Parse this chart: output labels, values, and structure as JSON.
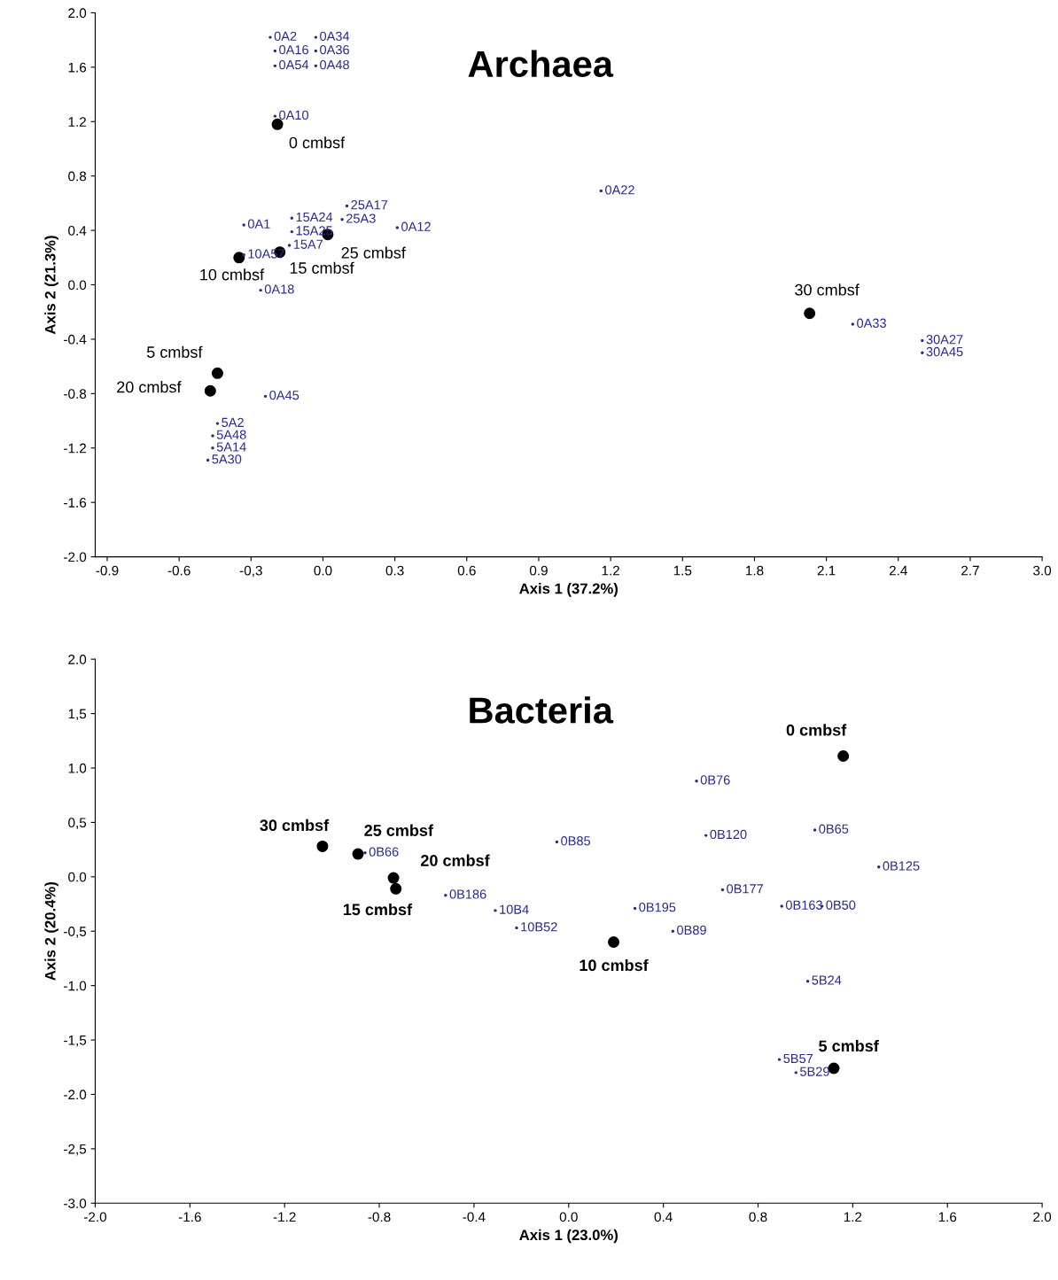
{
  "chart_data": [
    {
      "type": "scatter",
      "title": "Archaea",
      "xlabel": "Axis 1 (37.2%)",
      "ylabel": "Axis 2 (21.3%)",
      "xlim": [
        -0.95,
        3.0
      ],
      "ylim": [
        -2.0,
        2.0
      ],
      "xticks": [
        {
          "value": -0.9,
          "label": "-0.9"
        },
        {
          "value": -0.6,
          "label": "-0.6"
        },
        {
          "value": -0.3,
          "label": "-0,3"
        },
        {
          "value": 0.0,
          "label": "0.0"
        },
        {
          "value": 0.3,
          "label": "0.3"
        },
        {
          "value": 0.6,
          "label": "0.6"
        },
        {
          "value": 0.9,
          "label": "0.9"
        },
        {
          "value": 1.2,
          "label": "1.2"
        },
        {
          "value": 1.5,
          "label": "1.5"
        },
        {
          "value": 1.8,
          "label": "1.8"
        },
        {
          "value": 2.1,
          "label": "2.1"
        },
        {
          "value": 2.4,
          "label": "2.4"
        },
        {
          "value": 2.7,
          "label": "2.7"
        },
        {
          "value": 3.0,
          "label": "3.0"
        }
      ],
      "yticks": [
        {
          "value": -2.0,
          "label": "-2.0"
        },
        {
          "value": -1.6,
          "label": "-1.6"
        },
        {
          "value": -1.2,
          "label": "-1.2"
        },
        {
          "value": -0.8,
          "label": "-0.8"
        },
        {
          "value": -0.4,
          "label": "-0.4"
        },
        {
          "value": 0.0,
          "label": "0.0"
        },
        {
          "value": 0.4,
          "label": "0.4"
        },
        {
          "value": 0.8,
          "label": "0.8"
        },
        {
          "value": 1.2,
          "label": "1.2"
        },
        {
          "value": 1.6,
          "label": "1.6"
        },
        {
          "value": 2.0,
          "label": "2.0"
        }
      ],
      "grid": false,
      "legend": false,
      "marker": "circle",
      "series": [
        {
          "name": "0 cmbsf",
          "color": "#000000",
          "x": [
            -0.19
          ],
          "values": [
            1.18
          ]
        },
        {
          "name": "25 cmbsf",
          "color": "#000000",
          "x": [
            0.02
          ],
          "values": [
            0.37
          ]
        },
        {
          "name": "15 cmbsf",
          "color": "#000000",
          "x": [
            -0.18
          ],
          "values": [
            0.24
          ]
        },
        {
          "name": "10 cmbsf",
          "color": "#000000",
          "x": [
            -0.35
          ],
          "values": [
            0.2
          ]
        },
        {
          "name": "5 cmbsf",
          "color": "#000000",
          "x": [
            -0.44
          ],
          "values": [
            -0.65
          ]
        },
        {
          "name": "20 cmbsf",
          "color": "#000000",
          "x": [
            -0.47
          ],
          "values": [
            -0.78
          ]
        },
        {
          "name": "30 cmbsf",
          "color": "#000000",
          "x": [
            2.03
          ],
          "values": [
            -0.21
          ]
        },
        {
          "name": "0A2",
          "marker": "none",
          "color": "#2b2b8c",
          "x": [
            -0.22
          ],
          "values": [
            1.82
          ]
        },
        {
          "name": "0A34",
          "marker": "none",
          "color": "#2b2b8c",
          "x": [
            -0.03
          ],
          "values": [
            1.82
          ]
        },
        {
          "name": "0A16",
          "marker": "none",
          "color": "#2b2b8c",
          "x": [
            -0.2
          ],
          "values": [
            1.72
          ]
        },
        {
          "name": "0A36",
          "marker": "none",
          "color": "#2b2b8c",
          "x": [
            -0.03
          ],
          "values": [
            1.72
          ]
        },
        {
          "name": "0A54",
          "marker": "none",
          "color": "#2b2b8c",
          "x": [
            -0.2
          ],
          "values": [
            1.61
          ]
        },
        {
          "name": "0A48",
          "marker": "none",
          "color": "#2b2b8c",
          "x": [
            -0.03
          ],
          "values": [
            1.61
          ]
        },
        {
          "name": "0A10",
          "marker": "none",
          "color": "#2b2b8c",
          "x": [
            -0.2
          ],
          "values": [
            1.24
          ]
        },
        {
          "name": "0A22",
          "marker": "none",
          "color": "#2b2b8c",
          "x": [
            1.16
          ],
          "values": [
            0.69
          ]
        },
        {
          "name": "0A1",
          "marker": "none",
          "color": "#2b2b8c",
          "x": [
            -0.33
          ],
          "values": [
            0.44
          ]
        },
        {
          "name": "15A24",
          "marker": "none",
          "color": "#2b2b8c",
          "x": [
            -0.13
          ],
          "values": [
            0.49
          ]
        },
        {
          "name": "15A25",
          "marker": "none",
          "color": "#2b2b8c",
          "x": [
            -0.13
          ],
          "values": [
            0.39
          ]
        },
        {
          "name": "15A7",
          "marker": "none",
          "color": "#2b2b8c",
          "x": [
            -0.14
          ],
          "values": [
            0.29
          ]
        },
        {
          "name": "25A17",
          "marker": "none",
          "color": "#2b2b8c",
          "x": [
            0.1
          ],
          "values": [
            0.58
          ]
        },
        {
          "name": "25A3",
          "marker": "none",
          "color": "#2b2b8c",
          "x": [
            0.08
          ],
          "values": [
            0.48
          ]
        },
        {
          "name": "0A12",
          "marker": "none",
          "color": "#2b2b8c",
          "x": [
            0.31
          ],
          "values": [
            0.42
          ]
        },
        {
          "name": "10A57",
          "marker": "none",
          "color": "#2b2b8c",
          "x": [
            -0.33
          ],
          "values": [
            0.22
          ]
        },
        {
          "name": "0A18",
          "marker": "none",
          "color": "#2b2b8c",
          "x": [
            -0.26
          ],
          "values": [
            -0.04
          ]
        },
        {
          "name": "0A33",
          "marker": "none",
          "color": "#2b2b8c",
          "x": [
            2.21
          ],
          "values": [
            -0.29
          ]
        },
        {
          "name": "30A27",
          "marker": "none",
          "color": "#2b2b8c",
          "x": [
            2.5
          ],
          "values": [
            -0.41
          ]
        },
        {
          "name": "30A45",
          "marker": "none",
          "color": "#2b2b8c",
          "x": [
            2.5
          ],
          "values": [
            -0.5
          ]
        },
        {
          "name": "0A45",
          "marker": "none",
          "color": "#2b2b8c",
          "x": [
            -0.24
          ],
          "values": [
            -0.82
          ]
        },
        {
          "name": "5A2",
          "marker": "none",
          "color": "#2b2b8c",
          "x": [
            -0.44
          ],
          "values": [
            -1.02
          ]
        },
        {
          "name": "5A48",
          "marker": "none",
          "color": "#2b2b8c",
          "x": [
            -0.46
          ],
          "values": [
            -1.11
          ]
        },
        {
          "name": "5A14",
          "marker": "none",
          "color": "#2b2b8c",
          "x": [
            -0.46
          ],
          "values": [
            -1.2
          ]
        },
        {
          "name": "5A30",
          "marker": "none",
          "color": "#2b2b8c",
          "x": [
            -0.48
          ],
          "values": [
            -1.29
          ]
        }
      ]
    },
    {
      "type": "scatter",
      "title": "Bacteria",
      "xlabel": "Axis 1 (23.0%)",
      "ylabel": "Axis 2 (20.4%)",
      "xlim": [
        -2.0,
        2.0
      ],
      "ylim": [
        -3.0,
        2.0
      ],
      "xticks": [
        {
          "value": -2.0,
          "label": "-2.0"
        },
        {
          "value": -1.6,
          "label": "-1.6"
        },
        {
          "value": -1.2,
          "label": "-1.2"
        },
        {
          "value": -0.8,
          "label": "-0.8"
        },
        {
          "value": -0.4,
          "label": "-0.4"
        },
        {
          "value": 0.0,
          "label": "0.0"
        },
        {
          "value": 0.4,
          "label": "0.4"
        },
        {
          "value": 0.8,
          "label": "0.8"
        },
        {
          "value": 1.2,
          "label": "1.2"
        },
        {
          "value": 1.6,
          "label": "1.6"
        },
        {
          "value": 2.0,
          "label": "2.0"
        }
      ],
      "yticks": [
        {
          "value": -3.0,
          "label": "-3.0"
        },
        {
          "value": -2.5,
          "label": "-2,5"
        },
        {
          "value": -2.0,
          "label": "-2.0"
        },
        {
          "value": -1.5,
          "label": "-1,5"
        },
        {
          "value": -1.0,
          "label": "-1.0"
        },
        {
          "value": -0.5,
          "label": "-0,5"
        },
        {
          "value": 0.0,
          "label": "0.0"
        },
        {
          "value": 0.5,
          "label": "0,5"
        },
        {
          "value": 1.0,
          "label": "1.0"
        },
        {
          "value": 1.5,
          "label": "1,5"
        },
        {
          "value": 2.0,
          "label": "2.0"
        }
      ],
      "grid": false,
      "legend": false,
      "marker": "circle",
      "series": [
        {
          "name": "0 cmbsf",
          "color": "#000000",
          "x": [
            1.16
          ],
          "values": [
            1.11
          ]
        },
        {
          "name": "30 cmbsf",
          "color": "#000000",
          "x": [
            -1.04
          ],
          "values": [
            0.28
          ]
        },
        {
          "name": "25 cmbsf",
          "color": "#000000",
          "x": [
            -0.89
          ],
          "values": [
            0.21
          ]
        },
        {
          "name": "20 cmbsf",
          "color": "#000000",
          "x": [
            -0.74
          ],
          "values": [
            -0.01
          ]
        },
        {
          "name": "10 cmbsf",
          "color": "#000000",
          "x": [
            0.19
          ],
          "values": [
            -0.6
          ]
        },
        {
          "name": "5 cmbsf",
          "color": "#000000",
          "x": [
            1.12
          ],
          "values": [
            -1.76
          ]
        },
        {
          "name": "15 cmbsf",
          "color": "#000000",
          "x": [
            -0.73
          ],
          "values": [
            -0.11
          ]
        },
        {
          "name": "0B76",
          "marker": "none",
          "color": "#2b2b8c",
          "x": [
            0.54
          ],
          "values": [
            0.88
          ]
        },
        {
          "name": "0B85",
          "marker": "none",
          "color": "#2b2b8c",
          "x": [
            -0.05
          ],
          "values": [
            0.32
          ]
        },
        {
          "name": "0B120",
          "marker": "none",
          "color": "#2b2b8c",
          "x": [
            0.58
          ],
          "values": [
            0.38
          ]
        },
        {
          "name": "0B65",
          "marker": "none",
          "color": "#2b2b8c",
          "x": [
            1.04
          ],
          "values": [
            0.43
          ]
        },
        {
          "name": "0B125",
          "marker": "none",
          "color": "#2b2b8c",
          "x": [
            1.31
          ],
          "values": [
            0.09
          ]
        },
        {
          "name": "0B177",
          "marker": "none",
          "color": "#2b2b8c",
          "x": [
            0.65
          ],
          "values": [
            -0.12
          ]
        },
        {
          "name": "0B163",
          "marker": "none",
          "color": "#2b2b8c",
          "x": [
            0.9
          ],
          "values": [
            -0.27
          ]
        },
        {
          "name": "0B50",
          "marker": "none",
          "color": "#2b2b8c",
          "x": [
            1.07
          ],
          "values": [
            -0.27
          ]
        },
        {
          "name": "0B195",
          "marker": "none",
          "color": "#2b2b8c",
          "x": [
            0.28
          ],
          "values": [
            -0.29
          ]
        },
        {
          "name": "0B89",
          "marker": "none",
          "color": "#2b2b8c",
          "x": [
            0.44
          ],
          "values": [
            -0.5
          ]
        },
        {
          "name": "0B66",
          "marker": "none",
          "color": "#2b2b8c",
          "x": [
            -0.86
          ],
          "values": [
            0.22
          ]
        },
        {
          "name": "0B186",
          "marker": "none",
          "color": "#2b2b8c",
          "x": [
            -0.52
          ],
          "values": [
            -0.17
          ]
        },
        {
          "name": "10B4",
          "marker": "none",
          "color": "#2b2b8c",
          "x": [
            -0.31
          ],
          "values": [
            -0.31
          ]
        },
        {
          "name": "10B52",
          "marker": "none",
          "color": "#2b2b8c",
          "x": [
            -0.22
          ],
          "values": [
            -0.47
          ]
        },
        {
          "name": "5B24",
          "marker": "none",
          "color": "#2b2b8c",
          "x": [
            1.01
          ],
          "values": [
            -0.96
          ]
        },
        {
          "name": "5B57",
          "marker": "none",
          "color": "#2b2b8c",
          "x": [
            0.89
          ],
          "values": [
            -1.68
          ]
        },
        {
          "name": "5B29",
          "marker": "none",
          "color": "#2b2b8c",
          "x": [
            0.96
          ],
          "values": [
            -1.8
          ]
        }
      ]
    }
  ]
}
